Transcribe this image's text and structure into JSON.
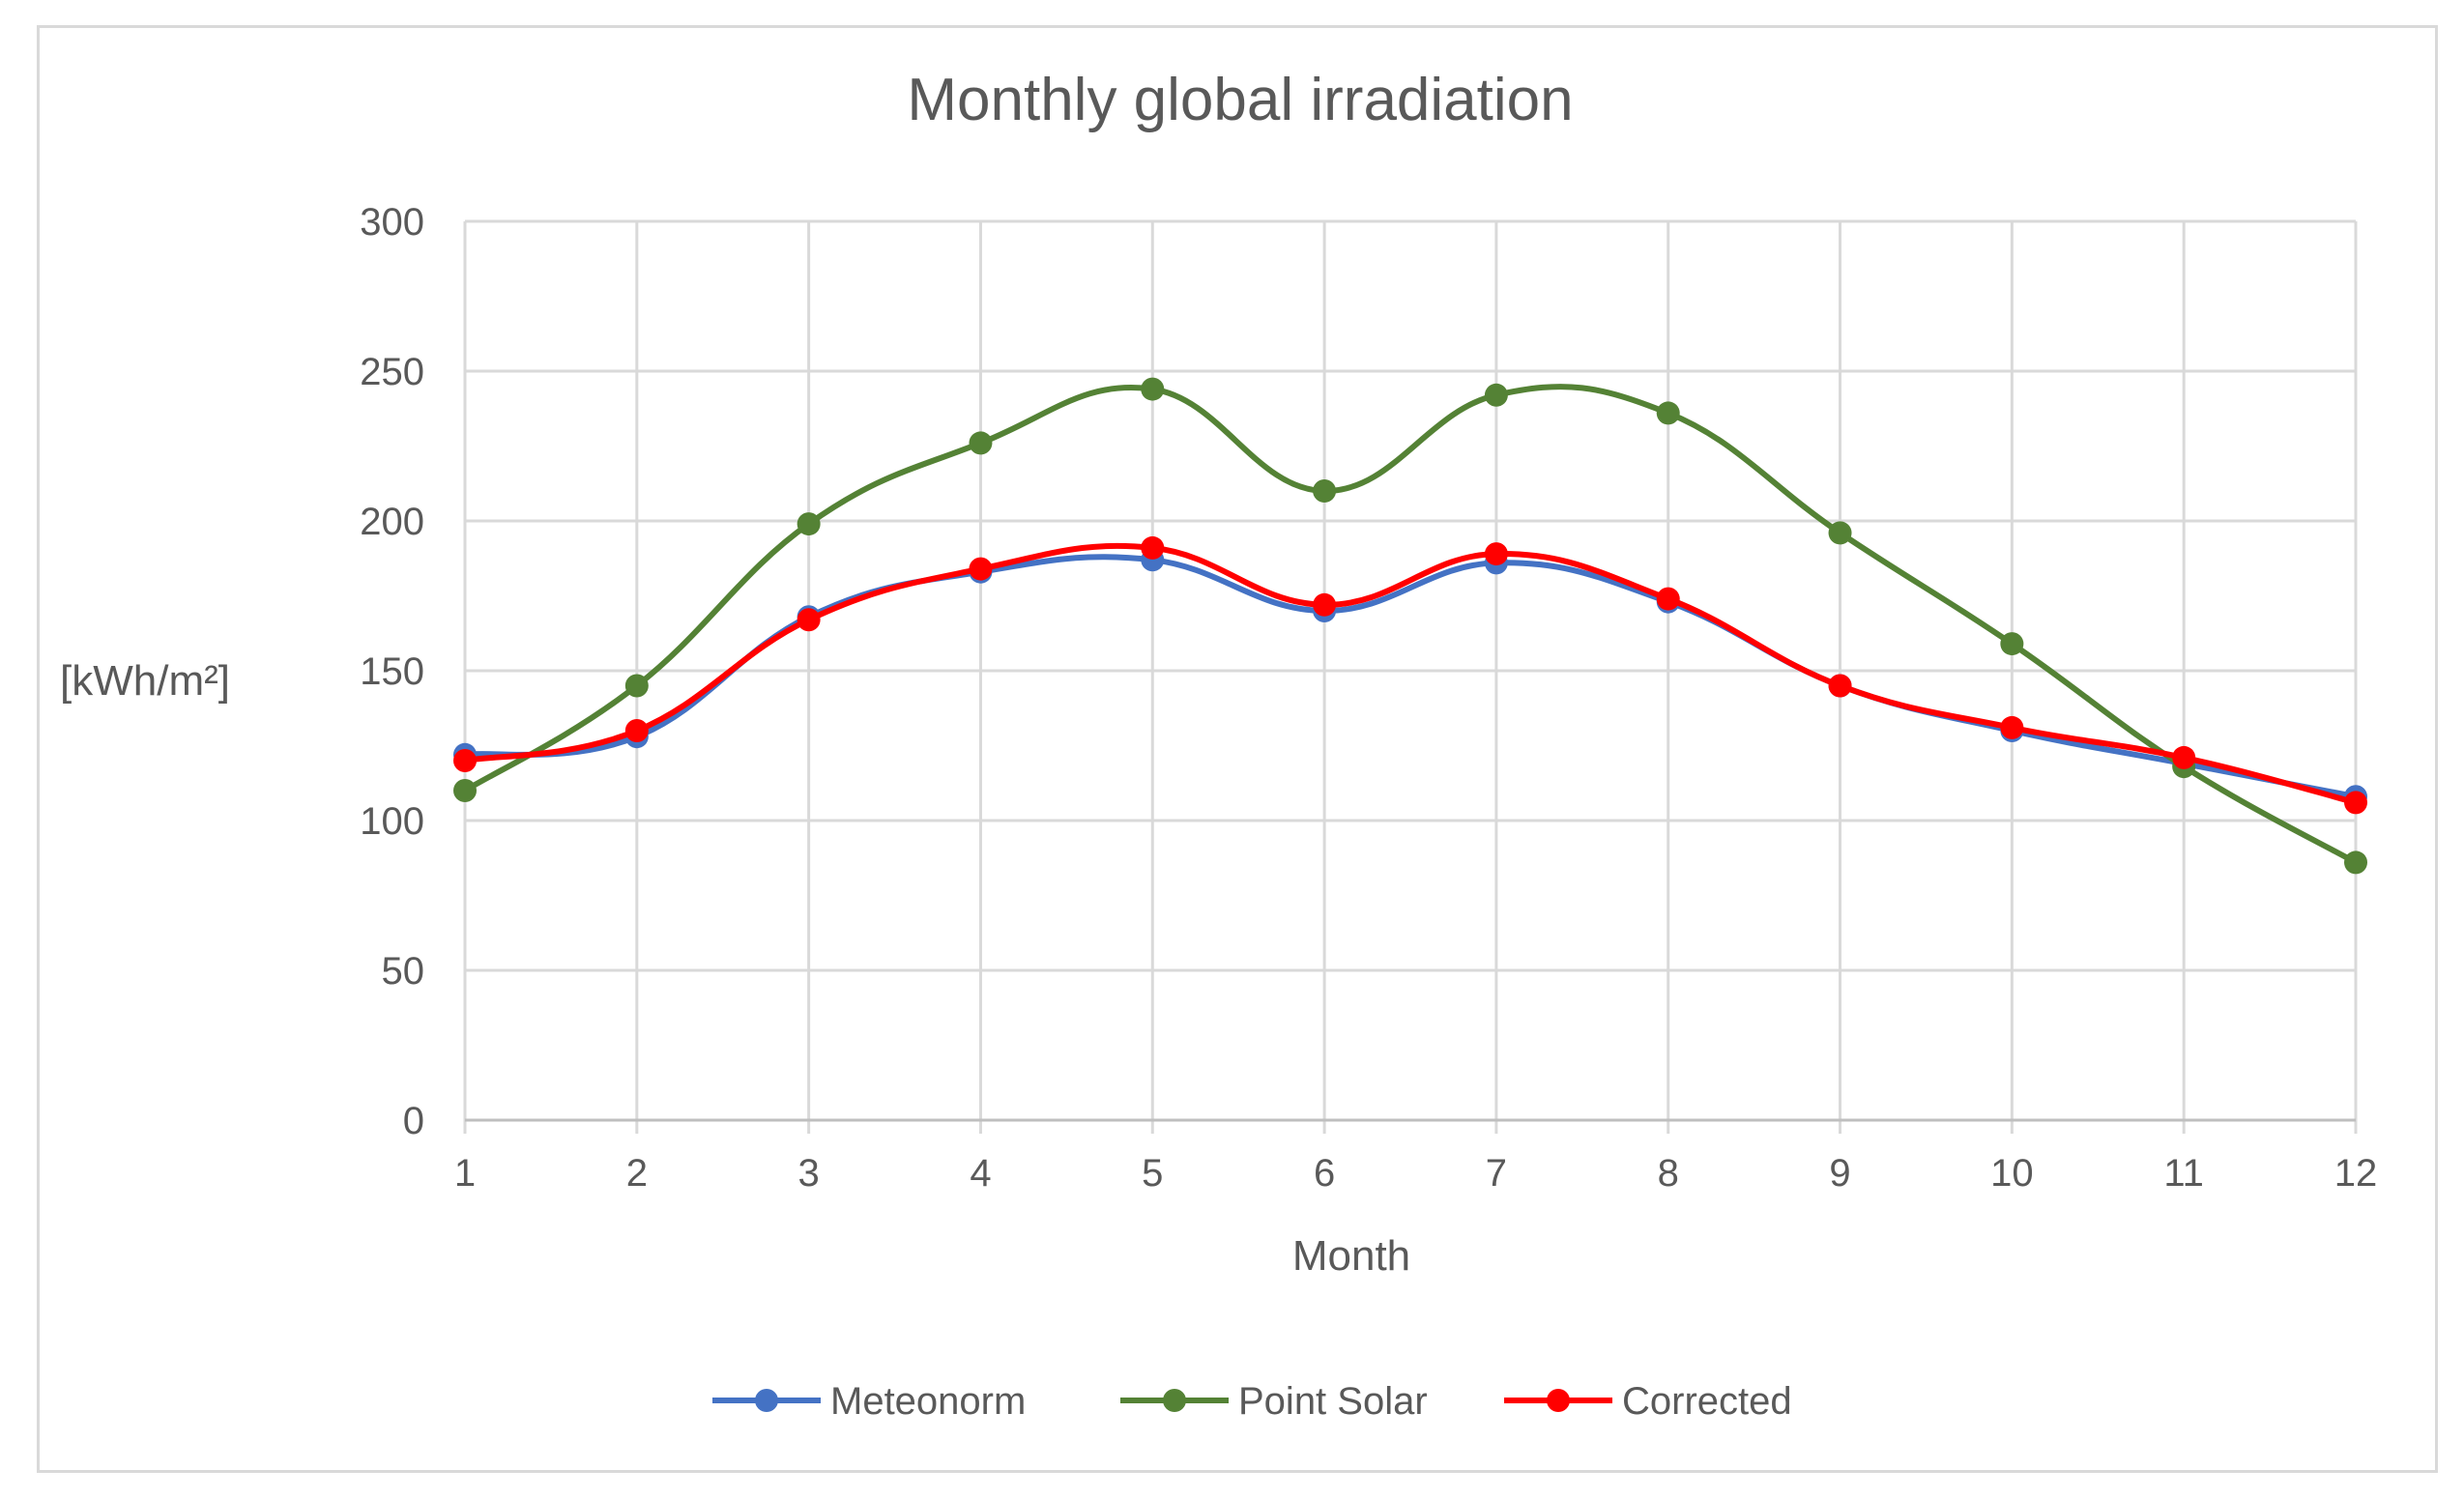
{
  "chart_data": {
    "type": "line",
    "title": "Monthly global irradiation",
    "xlabel": "Month",
    "ylabel": "[kWh/m²]",
    "x": [
      1,
      2,
      3,
      4,
      5,
      6,
      7,
      8,
      9,
      10,
      11,
      12
    ],
    "xlim": [
      1,
      12
    ],
    "ylim": [
      0,
      300
    ],
    "yticks": [
      0,
      50,
      100,
      150,
      200,
      250,
      300
    ],
    "grid": true,
    "smooth": true,
    "legend_position": "bottom",
    "series": [
      {
        "name": "Meteonorm",
        "color": "#4472c4",
        "values": [
          122,
          128,
          168,
          183,
          187,
          170,
          186,
          173,
          145,
          130,
          119,
          108
        ]
      },
      {
        "name": "Point Solar",
        "color": "#548235",
        "values": [
          110,
          145,
          199,
          226,
          244,
          210,
          242,
          236,
          196,
          159,
          118,
          86
        ]
      },
      {
        "name": "Corrected",
        "color": "#ff0000",
        "values": [
          120,
          130,
          167,
          184,
          191,
          172,
          189,
          174,
          145,
          131,
          121,
          106
        ]
      }
    ]
  }
}
